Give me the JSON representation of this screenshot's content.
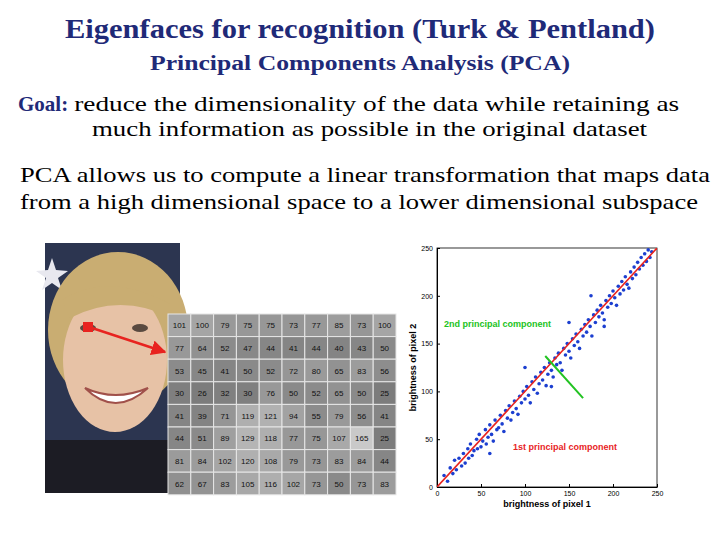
{
  "slide": {
    "title": "Eigenfaces for recognition (Turk & Pentland)",
    "subtitle": "Principal Components Analysis (PCA)",
    "goal_label": "Goal:",
    "goal_lines": [
      "reduce the dimensionality of the data while retaining as",
      "much information as possible in the original dataset"
    ],
    "paragraph_lines": [
      "PCA allows us to compute a linear transformation that maps data",
      "from a high dimensional space to a lower dimensional subspace"
    ]
  },
  "pixel_table": {
    "rows": [
      [
        101,
        100,
        79,
        75,
        75,
        73,
        77,
        85,
        73,
        100
      ],
      [
        77,
        64,
        52,
        47,
        44,
        41,
        44,
        40,
        43,
        50
      ],
      [
        53,
        45,
        41,
        50,
        52,
        72,
        80,
        65,
        83,
        56
      ],
      [
        30,
        26,
        32,
        30,
        76,
        50,
        52,
        65,
        50,
        25
      ],
      [
        41,
        39,
        71,
        119,
        121,
        94,
        55,
        79,
        56,
        41
      ],
      [
        44,
        51,
        89,
        129,
        118,
        77,
        75,
        107,
        165,
        25
      ],
      [
        81,
        84,
        102,
        120,
        108,
        79,
        73,
        83,
        84,
        44
      ],
      [
        62,
        67,
        83,
        105,
        116,
        102,
        73,
        50,
        73,
        83
      ]
    ]
  },
  "chart_data": {
    "type": "scatter",
    "xlabel": "brightness of pixel 1",
    "ylabel": "brightness of pixel 2",
    "color": "#1c3fd0",
    "marker": "circle",
    "xlim": [
      0,
      250
    ],
    "ylim": [
      0,
      250
    ],
    "xticks": [
      0,
      50,
      100,
      150,
      200,
      250
    ],
    "yticks": [
      0,
      50,
      100,
      150,
      200,
      250
    ],
    "x": [
      8,
      12,
      15,
      18,
      20,
      22,
      25,
      28,
      30,
      32,
      35,
      36,
      38,
      40,
      42,
      45,
      46,
      48,
      50,
      52,
      55,
      56,
      58,
      60,
      62,
      64,
      66,
      68,
      70,
      72,
      74,
      76,
      78,
      80,
      82,
      84,
      86,
      88,
      90,
      92,
      94,
      96,
      98,
      100,
      102,
      104,
      106,
      108,
      110,
      112,
      114,
      116,
      118,
      120,
      122,
      124,
      126,
      128,
      130,
      132,
      134,
      136,
      138,
      140,
      142,
      144,
      146,
      148,
      150,
      152,
      154,
      156,
      158,
      160,
      162,
      164,
      166,
      168,
      170,
      172,
      174,
      176,
      178,
      180,
      182,
      184,
      186,
      188,
      190,
      192,
      194,
      196,
      198,
      200,
      202,
      204,
      206,
      208,
      210,
      212,
      214,
      216,
      218,
      220,
      222,
      224,
      226,
      228,
      230,
      232,
      234,
      236,
      238,
      240,
      242,
      244,
      60,
      150,
      100,
      175,
      130,
      190
    ],
    "values": [
      12,
      6,
      20,
      14,
      28,
      18,
      30,
      22,
      35,
      25,
      40,
      30,
      45,
      33,
      38,
      50,
      40,
      55,
      42,
      48,
      60,
      45,
      52,
      65,
      55,
      48,
      70,
      60,
      62,
      75,
      66,
      58,
      80,
      72,
      85,
      70,
      78,
      90,
      82,
      76,
      95,
      88,
      100,
      92,
      105,
      96,
      88,
      110,
      102,
      115,
      98,
      108,
      120,
      112,
      125,
      106,
      118,
      130,
      122,
      115,
      135,
      128,
      140,
      130,
      122,
      145,
      138,
      150,
      142,
      135,
      155,
      148,
      160,
      152,
      145,
      165,
      158,
      170,
      162,
      175,
      168,
      158,
      180,
      172,
      185,
      178,
      190,
      182,
      175,
      195,
      188,
      200,
      192,
      205,
      198,
      190,
      210,
      202,
      215,
      206,
      220,
      212,
      208,
      225,
      218,
      230,
      222,
      235,
      228,
      240,
      232,
      244,
      236,
      248,
      240,
      246,
      35,
      172,
      125,
      200,
      105,
      168
    ],
    "annotations": [
      {
        "text": "1st principal component",
        "color": "#e8231f",
        "x": [
          0,
          250
        ],
        "y": [
          0,
          250
        ]
      },
      {
        "text": "2nd principal component",
        "color": "#22c322",
        "x": [
          123,
          166
        ],
        "y": [
          137,
          93
        ]
      }
    ]
  }
}
